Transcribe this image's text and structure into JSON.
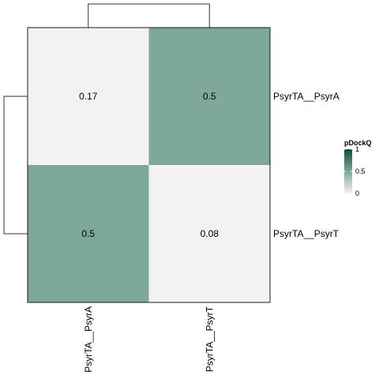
{
  "chart_data": {
    "type": "heatmap",
    "rows": [
      "PsyrTA__PsyrA",
      "PsyrTA__PsyrT"
    ],
    "columns": [
      "PsyrTA__PsyrA",
      "PsyrTA__PsyrT"
    ],
    "values": [
      [
        0.17,
        0.5
      ],
      [
        0.5,
        0.08
      ]
    ],
    "cell_labels": [
      [
        "0.17",
        "0.5"
      ],
      [
        "0.5",
        "0.08"
      ]
    ],
    "row_dendrogram": true,
    "column_dendrogram": true,
    "legend": {
      "title": "pDockQ",
      "range": [
        0,
        1
      ],
      "ticks": [
        {
          "value": 0,
          "label": "0"
        },
        {
          "value": 0.5,
          "label": "0.5"
        },
        {
          "value": 1,
          "label": "1"
        }
      ],
      "color_low": "#f2f2f2",
      "color_high": "#0f4d3c",
      "placement": "right"
    },
    "colors": {
      "cell_low": "#f2f2f2",
      "cell_mid": "#7da89b",
      "border": "#1a1a1a",
      "dendrogram": "#333333"
    }
  }
}
